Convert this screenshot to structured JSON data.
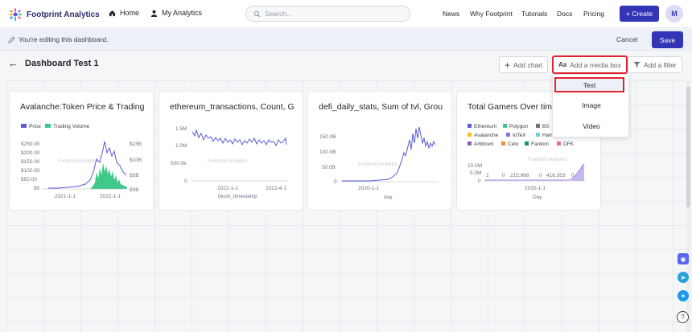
{
  "nav": {
    "brand": "Footprint Analytics",
    "home": "Home",
    "my_analytics": "My Analytics",
    "search_placeholder": "Search...",
    "links": [
      "News",
      "Why Footprint",
      "Tutorials",
      "Docs",
      "Pricing"
    ],
    "create": "+ Create",
    "avatar": "M"
  },
  "editbar": {
    "message": "You're editing this dashboard.",
    "cancel": "Cancel",
    "save": "Save"
  },
  "dashboard": {
    "title": "Dashboard Test 1",
    "add_chart": "Add chart",
    "add_media": "Add a media box",
    "add_filter": "Add a filter",
    "media_icon": "Aa"
  },
  "dropdown": {
    "items": [
      "Text",
      "Image",
      "Video"
    ]
  },
  "cards": [
    {
      "title": "Avalanche:Token Price & Trading",
      "legend": [
        "Price",
        "Trading Volume"
      ],
      "y_left": [
        "$250.00",
        "$200.00",
        "$150.00",
        "$100.00",
        "$50.00",
        "$0"
      ],
      "y_right": [
        "$15B",
        "$10B",
        "$5B",
        "$0B"
      ],
      "x": [
        "2021-1-1",
        "2022-1-1"
      ]
    },
    {
      "title": "ethereum_transactions, Count, G",
      "y": [
        "1.5M",
        "1.0M",
        "500.0k",
        "0"
      ],
      "x": [
        "2022-1-1",
        "2022-4-1"
      ],
      "xlabel": "block_timestamp"
    },
    {
      "title": "defi_daily_stats, Sum of tvl, Grou",
      "y": [
        "150.0B",
        "100.0B",
        "50.0B",
        "0"
      ],
      "x": [
        "2020-1-1"
      ],
      "xlabel": "day"
    },
    {
      "title": "Total Gamers Over tim",
      "legend": [
        "Ethereum",
        "Polygon",
        "BS",
        "Avalanche",
        "IoTeX",
        "Ham",
        "Arbitrum",
        "Celo",
        "Fantom",
        "DFK"
      ],
      "y": [
        "10.0M",
        "5.0M",
        "0"
      ],
      "labels": [
        "2",
        "0",
        "215,968",
        "0",
        "416,353",
        "0"
      ],
      "x": [
        "2020-1-1"
      ],
      "xlabel": "Day"
    }
  ],
  "watermark": "Footprint Analytics",
  "colors": {
    "accent": "#3434b6",
    "highlight": "#e0232e",
    "price_line": "#5b5bd6",
    "volume": "#3ec98a"
  }
}
